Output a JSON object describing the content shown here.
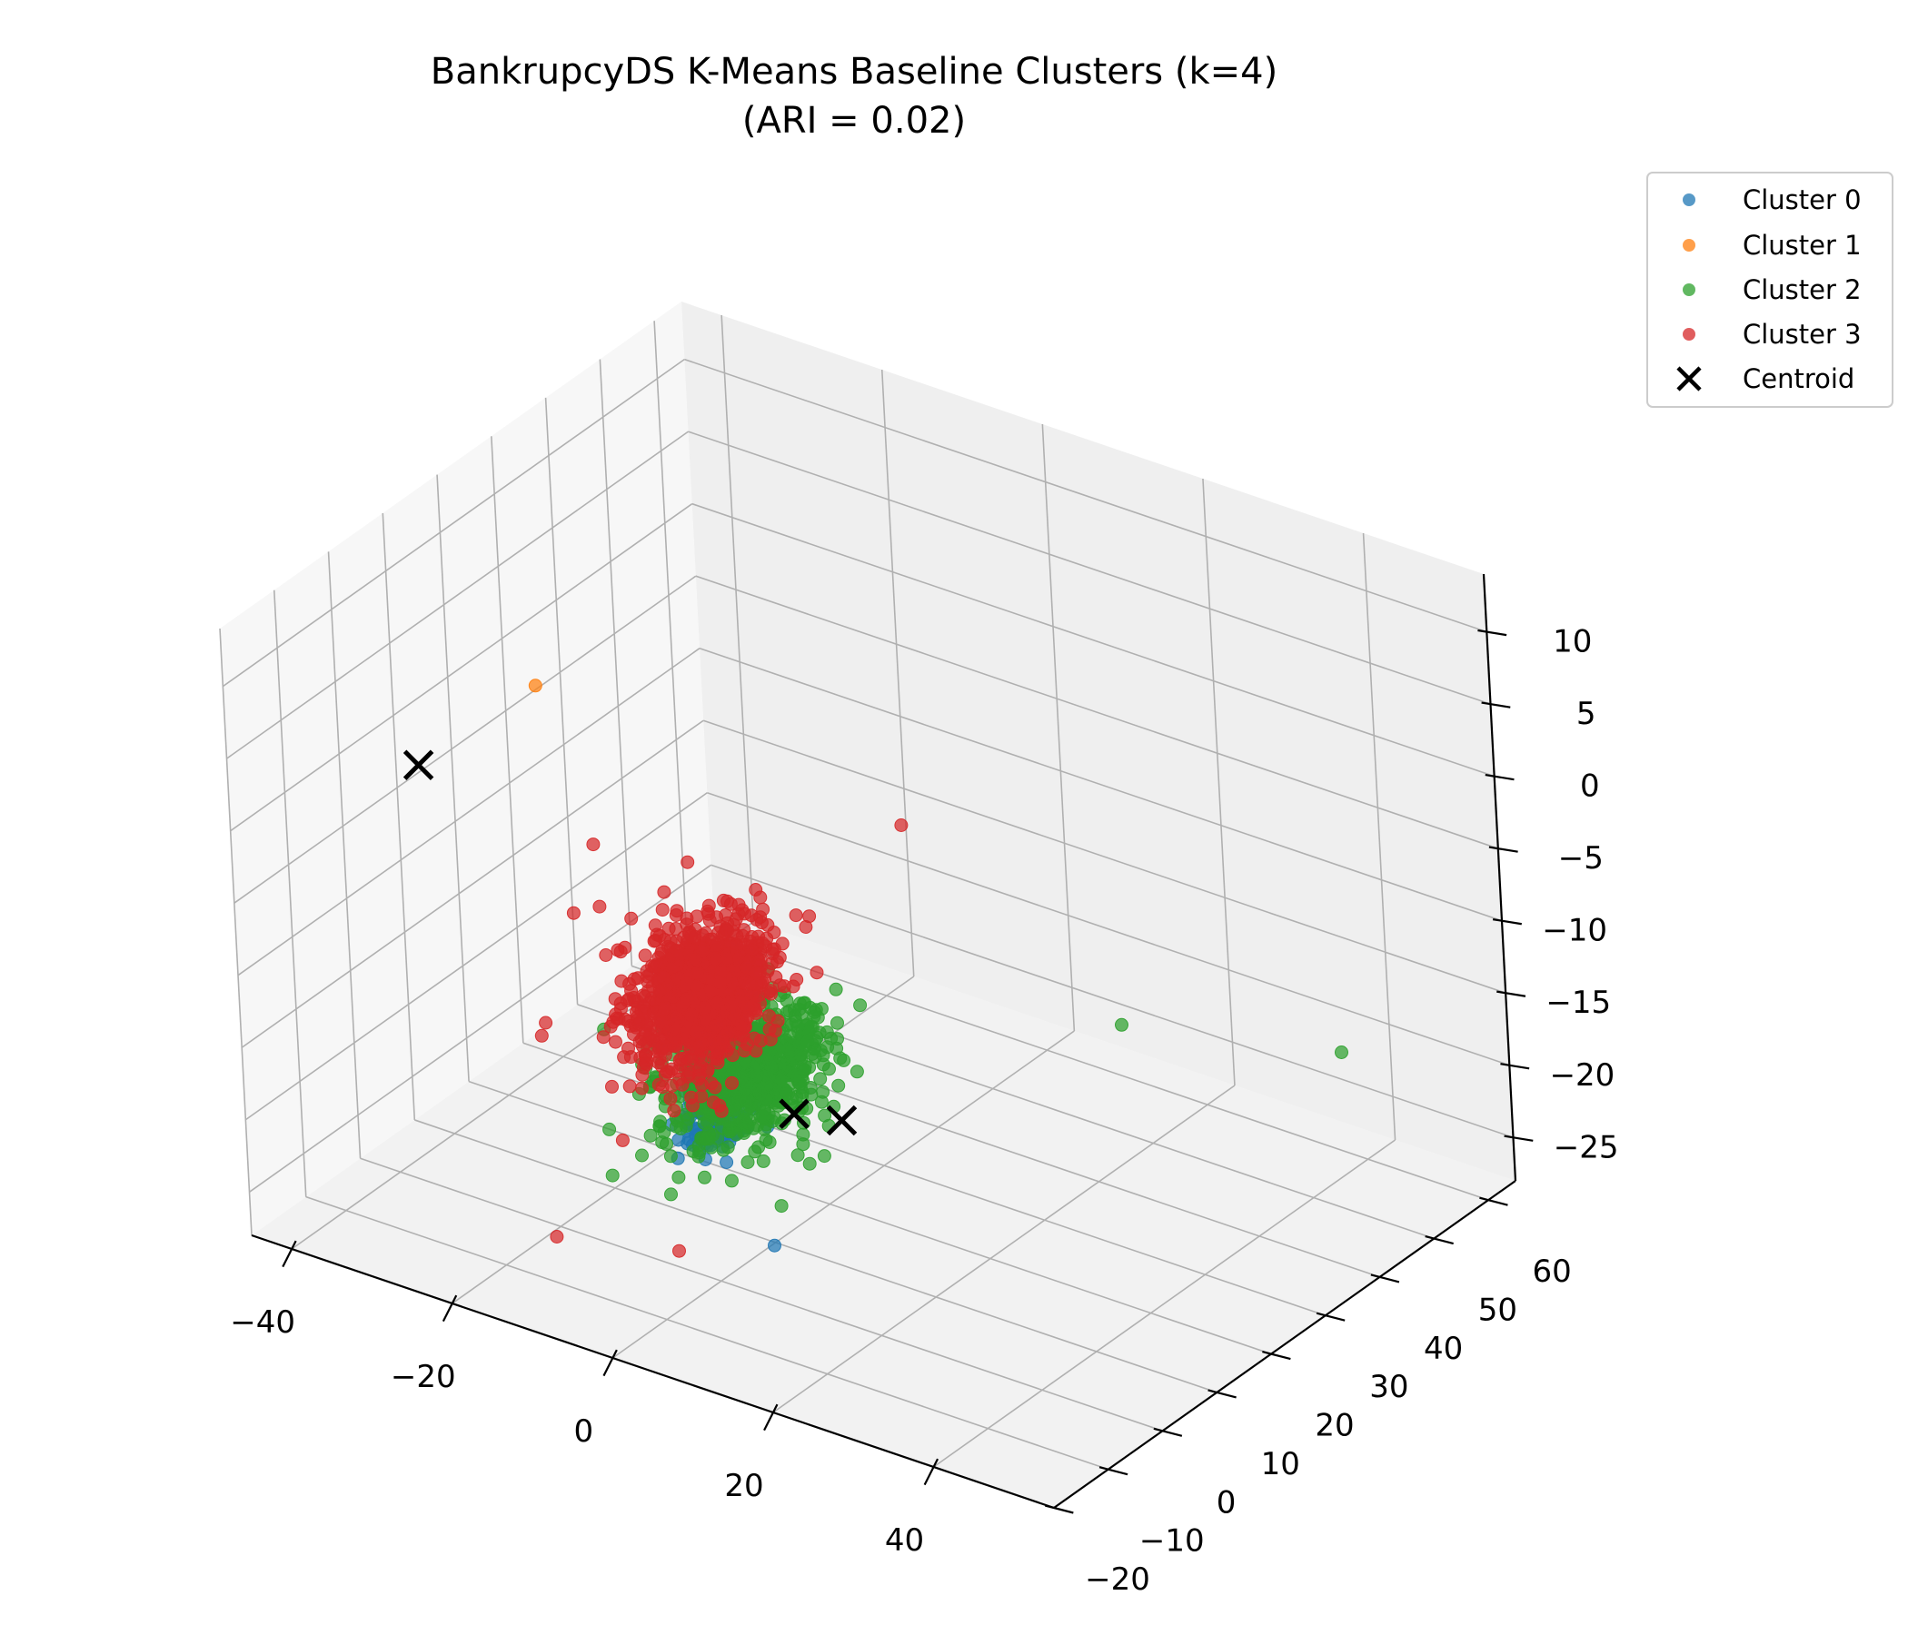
{
  "chart_data": {
    "type": "scatter",
    "projection": "3d",
    "title": "BankrupcyDS K-Means Baseline Clusters (k=4)",
    "subtitle": "(ARI = 0.02)",
    "grid": true,
    "legend_position": "upper right, outside plot",
    "xlim": [
      -45,
      55
    ],
    "ylim": [
      -20,
      65
    ],
    "zlim": [
      -28,
      14
    ],
    "x_ticks": [
      "−40",
      "−20",
      "0",
      "20",
      "40"
    ],
    "y_ticks": [
      "−20",
      "−10",
      "0",
      "10",
      "20",
      "30",
      "40",
      "50",
      "60"
    ],
    "z_ticks": [
      "−25",
      "−20",
      "−15",
      "−10",
      "−5",
      "0",
      "5",
      "10"
    ],
    "series": [
      {
        "name": "Cluster 0",
        "color": "#1f77b4",
        "marker": "circle",
        "clusters": [
          {
            "x": 0.5,
            "y": 0,
            "z": -16.5,
            "n": 160,
            "sx": 1.6,
            "sy": 2.5,
            "sz": 1.0
          }
        ],
        "points": [
          {
            "x": 6.5,
            "y": 0.7,
            "z": -24.5
          },
          {
            "x": 1,
            "y": -3,
            "z": -17.5
          },
          {
            "x": -3,
            "y": 4,
            "z": -16.5
          }
        ]
      },
      {
        "name": "Cluster 1",
        "color": "#ff7f0e",
        "marker": "circle",
        "clusters": [],
        "points": [
          {
            "x": -38,
            "y": 25.7,
            "z": -0.8
          }
        ]
      },
      {
        "name": "Cluster 2",
        "color": "#2ca02c",
        "marker": "circle",
        "clusters": [
          {
            "x": 4,
            "y": 1,
            "z": -13,
            "n": 700,
            "sx": 3.5,
            "sy": 5.5,
            "sz": 2.0
          }
        ],
        "points": [
          {
            "x": 30,
            "y": 31.5,
            "z": -13
          },
          {
            "x": 50,
            "y": 42.3,
            "z": -14
          },
          {
            "x": 13,
            "y": 1.3,
            "z": -13.5
          },
          {
            "x": 14,
            "y": -2.8,
            "z": -16.5
          },
          {
            "x": 12,
            "y": -1,
            "z": -16
          },
          {
            "x": 11,
            "y": 6.2,
            "z": -15.5
          },
          {
            "x": 9,
            "y": 5.2,
            "z": -10.5
          },
          {
            "x": 10,
            "y": 1.9,
            "z": -9
          },
          {
            "x": 8,
            "y": -2.2,
            "z": -14.5
          }
        ]
      },
      {
        "name": "Cluster 3",
        "color": "#d62728",
        "marker": "circle",
        "clusters": [
          {
            "x": -3.5,
            "y": 4,
            "z": -10,
            "n": 1100,
            "sx": 2.5,
            "sy": 5,
            "sz": 2.2
          }
        ],
        "points": [
          {
            "x": 5.5,
            "y": 28.5,
            "z": -3
          },
          {
            "x": -9,
            "y": 10.5,
            "z": -3.5
          },
          {
            "x": -15.5,
            "y": 3,
            "z": -1.5
          },
          {
            "x": -17,
            "y": 1,
            "z": -6
          },
          {
            "x": 5,
            "y": 12,
            "z": -5
          },
          {
            "x": -14,
            "y": -10,
            "z": -11
          },
          {
            "x": 0,
            "y": -7.2,
            "z": -24
          },
          {
            "x": -12,
            "y": -12,
            "z": -24
          },
          {
            "x": -9,
            "y": -3.6,
            "z": -19
          },
          {
            "x": -17,
            "y": -5,
            "z": -12
          },
          {
            "x": -12,
            "y": 2,
            "z": -8
          },
          {
            "x": -9,
            "y": 8,
            "z": -6.5
          }
        ]
      }
    ],
    "centroids": {
      "name": "Centroid",
      "color": "#000000",
      "marker": "x",
      "points": [
        {
          "x": -45,
          "y": 14,
          "z": -4.5
        },
        {
          "x": 8,
          "y": 3.3,
          "z": -15.8
        },
        {
          "x": 16,
          "y": 0.5,
          "z": -14
        }
      ]
    }
  }
}
